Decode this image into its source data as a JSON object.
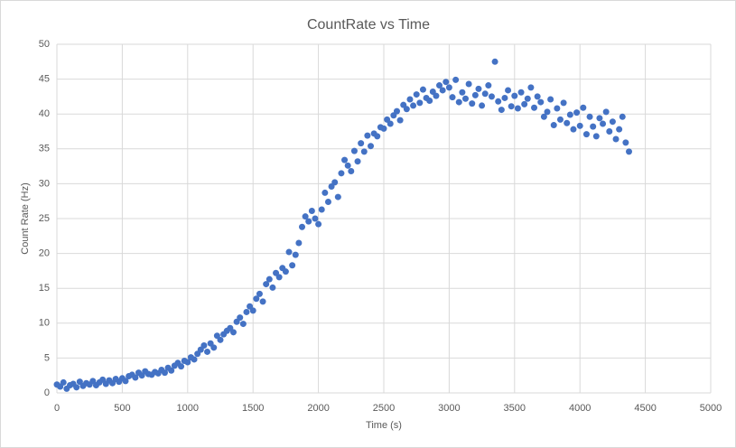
{
  "chart_data": {
    "type": "scatter",
    "title": "CountRate vs Time",
    "x_label": "Time (s)",
    "y_label": "Count Rate (Hz)",
    "color": "#4472c4",
    "grid": true,
    "xlim": [
      0,
      5000
    ],
    "xticks": [
      0,
      500,
      1000,
      1500,
      2000,
      2500,
      3000,
      3500,
      4000,
      4500,
      5000
    ],
    "ylim": [
      0,
      50
    ],
    "yticks": [
      0,
      5,
      10,
      15,
      20,
      25,
      30,
      35,
      40,
      45,
      50
    ],
    "x": [
      0,
      25,
      50,
      75,
      100,
      125,
      150,
      175,
      200,
      225,
      250,
      275,
      300,
      325,
      350,
      375,
      400,
      425,
      450,
      475,
      500,
      525,
      550,
      575,
      600,
      625,
      650,
      675,
      700,
      725,
      750,
      775,
      800,
      825,
      850,
      875,
      900,
      925,
      950,
      975,
      1000,
      1025,
      1050,
      1075,
      1100,
      1125,
      1150,
      1175,
      1200,
      1225,
      1250,
      1275,
      1300,
      1325,
      1350,
      1375,
      1400,
      1425,
      1450,
      1475,
      1500,
      1525,
      1550,
      1575,
      1600,
      1625,
      1650,
      1675,
      1700,
      1725,
      1750,
      1775,
      1800,
      1825,
      1850,
      1875,
      1900,
      1925,
      1950,
      1975,
      2000,
      2025,
      2050,
      2075,
      2100,
      2125,
      2150,
      2175,
      2200,
      2225,
      2250,
      2275,
      2300,
      2325,
      2350,
      2375,
      2400,
      2425,
      2450,
      2475,
      2500,
      2525,
      2550,
      2575,
      2600,
      2625,
      2650,
      2675,
      2700,
      2725,
      2750,
      2775,
      2800,
      2825,
      2850,
      2875,
      2900,
      2925,
      2950,
      2975,
      3000,
      3025,
      3050,
      3075,
      3100,
      3125,
      3150,
      3175,
      3200,
      3225,
      3250,
      3275,
      3300,
      3325,
      3350,
      3375,
      3400,
      3425,
      3450,
      3475,
      3500,
      3525,
      3550,
      3575,
      3600,
      3625,
      3650,
      3675,
      3700,
      3725,
      3750,
      3775,
      3800,
      3825,
      3850,
      3875,
      3900,
      3925,
      3950,
      3975,
      4000,
      4025,
      4050,
      4075,
      4100,
      4125,
      4150,
      4175,
      4200,
      4225,
      4250,
      4275,
      4300,
      4325,
      4350,
      4375
    ],
    "y": [
      1.2,
      0.9,
      1.5,
      0.6,
      1.1,
      1.3,
      0.8,
      1.6,
      1.0,
      1.4,
      1.2,
      1.7,
      1.1,
      1.5,
      1.9,
      1.3,
      1.8,
      1.4,
      2.0,
      1.6,
      2.1,
      1.7,
      2.4,
      2.6,
      2.2,
      2.9,
      2.5,
      3.1,
      2.7,
      2.6,
      3.0,
      2.8,
      3.3,
      2.9,
      3.6,
      3.2,
      3.9,
      4.3,
      3.8,
      4.6,
      4.4,
      5.1,
      4.8,
      5.6,
      6.2,
      6.8,
      5.9,
      7.1,
      6.5,
      8.2,
      7.6,
      8.4,
      8.9,
      9.3,
      8.7,
      10.2,
      10.8,
      9.9,
      11.6,
      12.4,
      11.8,
      13.5,
      14.2,
      13.1,
      15.6,
      16.3,
      15.1,
      17.2,
      16.6,
      17.9,
      17.4,
      20.2,
      18.3,
      19.8,
      21.5,
      23.8,
      25.3,
      24.6,
      26.1,
      25.0,
      24.2,
      26.3,
      28.7,
      27.4,
      29.6,
      30.2,
      28.1,
      31.5,
      33.4,
      32.6,
      31.8,
      34.7,
      33.2,
      35.8,
      34.6,
      36.9,
      35.4,
      37.2,
      36.8,
      38.1,
      37.9,
      39.2,
      38.6,
      39.8,
      40.4,
      39.1,
      41.3,
      40.7,
      42.1,
      41.2,
      42.8,
      41.6,
      43.5,
      42.3,
      41.9,
      43.2,
      42.6,
      44.1,
      43.4,
      44.6,
      43.8,
      42.4,
      44.9,
      41.7,
      43.1,
      42.2,
      44.3,
      41.5,
      42.7,
      43.6,
      41.2,
      42.9,
      44.1,
      42.5,
      47.5,
      41.8,
      40.6,
      42.3,
      43.4,
      41.1,
      42.6,
      40.8,
      43.1,
      41.4,
      42.2,
      43.8,
      40.9,
      42.5,
      41.7,
      39.6,
      40.3,
      42.1,
      38.4,
      40.8,
      39.2,
      41.6,
      38.7,
      39.9,
      37.8,
      40.2,
      38.3,
      40.9,
      37.1,
      39.6,
      38.2,
      36.8,
      39.4,
      38.6,
      40.3,
      37.5,
      38.9,
      36.4,
      37.8,
      39.6,
      35.9,
      34.6
    ]
  }
}
